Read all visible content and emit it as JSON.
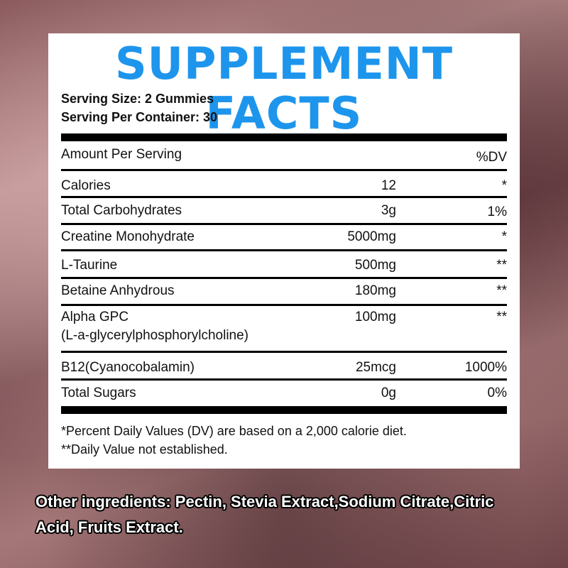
{
  "title": "SUPPLEMENT FACTS",
  "serving_size": "Serving Size: 2 Gummies",
  "servings_per_container": "Serving Per Container: 30",
  "header": {
    "amount": "Amount Per Serving",
    "dv": "%DV"
  },
  "rows": [
    {
      "name": "Calories",
      "amount": "12",
      "dv": "*"
    },
    {
      "name": "Total Carbohydrates",
      "amount": "3g",
      "dv": "1%"
    },
    {
      "name": "Creatine Monohydrate",
      "amount": "5000mg",
      "dv": "*"
    },
    {
      "name": "L-Taurine",
      "amount": "500mg",
      "dv": "**"
    },
    {
      "name": "Betaine Anhydrous",
      "amount": "180mg",
      "dv": "**"
    },
    {
      "name": "Alpha GPC",
      "subname": "(L-a-glycerylphosphorylcholine)",
      "amount": "100mg",
      "dv": "**"
    },
    {
      "name": "B12(Cyanocobalamin)",
      "amount": "25mcg",
      "dv": "1000%"
    },
    {
      "name": "Total Sugars",
      "amount": "0g",
      "dv": "0%"
    }
  ],
  "footnotes": [
    "*Percent Daily Values (DV) are based on a 2,000 calorie diet.",
    "**Daily Value not established."
  ],
  "other_ingredients": [
    "Other ingredients: Pectin, Stevia Extract,Sodium Citrate,Citric",
    "Acid, Fruits Extract."
  ],
  "colors": {
    "title": "#1e95ec",
    "background_tint": "#8a5a5c"
  }
}
